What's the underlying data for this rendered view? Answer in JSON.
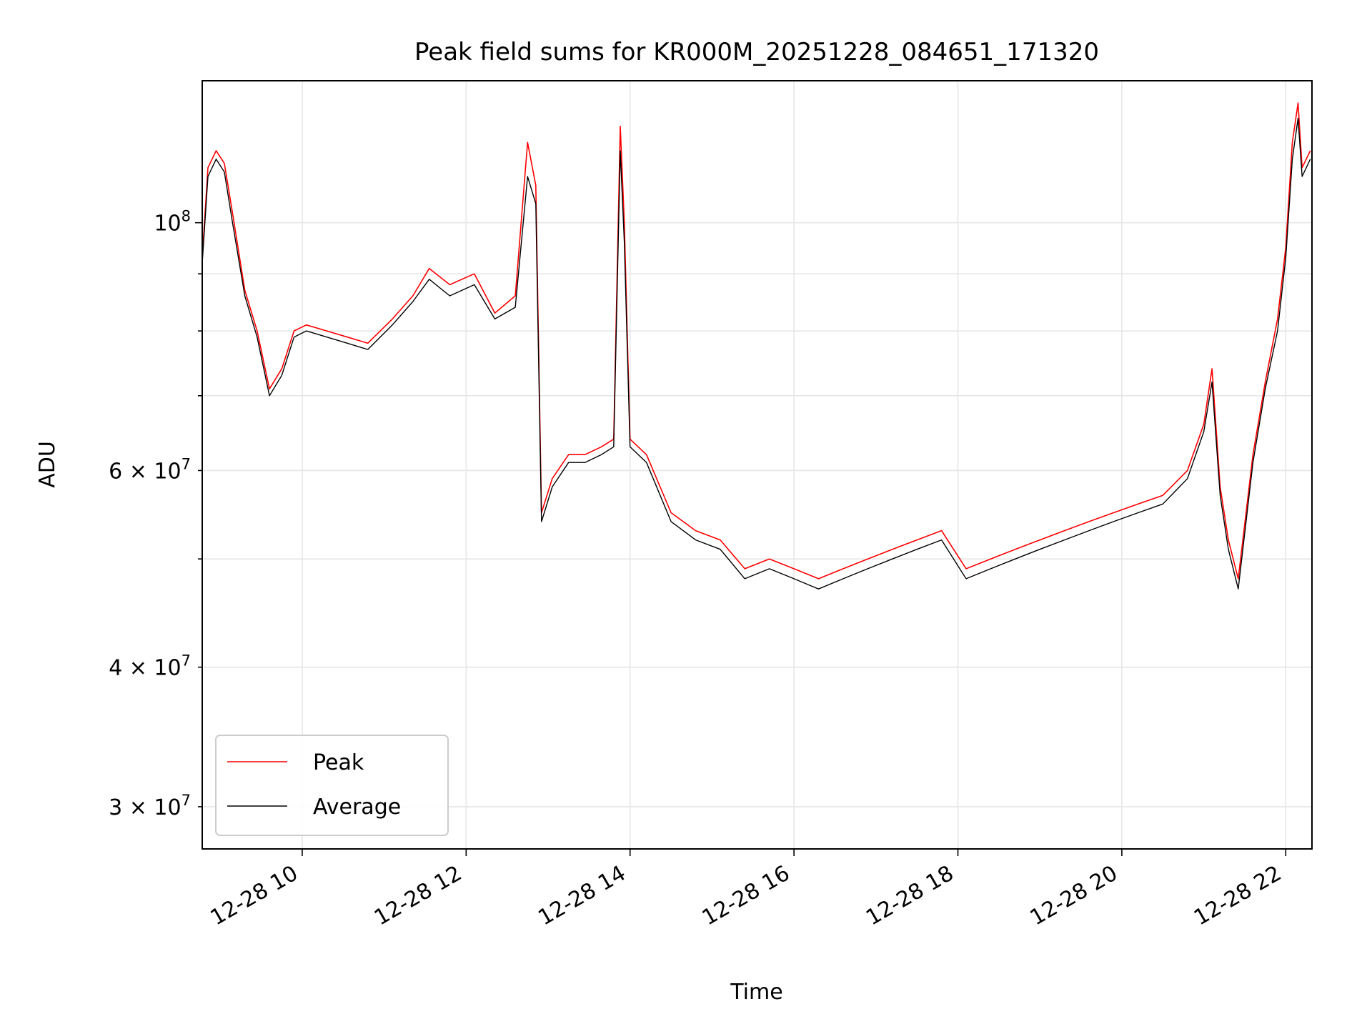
{
  "chart_data": {
    "type": "line",
    "title": "Peak field sums for KR000M_20251228_084651_171320",
    "xlabel": "Time",
    "ylabel": "ADU",
    "x_unit": "hours (2025-12-28)",
    "xlim": [
      8.78,
      22.32
    ],
    "ylim": [
      27500000.0,
      134000000.0
    ],
    "yscale": "log",
    "grid": true,
    "legend_position": "lower-left",
    "x_ticks": [
      {
        "value": 10,
        "label": "12-28 10"
      },
      {
        "value": 12,
        "label": "12-28 12"
      },
      {
        "value": 14,
        "label": "12-28 14"
      },
      {
        "value": 16,
        "label": "12-28 16"
      },
      {
        "value": 18,
        "label": "12-28 18"
      },
      {
        "value": 20,
        "label": "12-28 20"
      },
      {
        "value": 22,
        "label": "12-28 22"
      }
    ],
    "y_ticks_major": [
      {
        "value": 100000000,
        "mantissa": "10",
        "exponent": "8"
      }
    ],
    "y_ticks_minor": [
      {
        "value": 30000000,
        "mantissa": "3 × 10",
        "exponent": "7"
      },
      {
        "value": 40000000,
        "mantissa": "4 × 10",
        "exponent": "7"
      },
      {
        "value": 50000000,
        "mantissa": "",
        "exponent": ""
      },
      {
        "value": 60000000,
        "mantissa": "6 × 10",
        "exponent": "7"
      },
      {
        "value": 70000000,
        "mantissa": "",
        "exponent": ""
      },
      {
        "value": 80000000,
        "mantissa": "",
        "exponent": ""
      },
      {
        "value": 90000000,
        "mantissa": "",
        "exponent": ""
      }
    ],
    "colors": {
      "peak": "#ff0000",
      "average": "#000000",
      "grid": "#e6e6e6",
      "legend_border": "#cccccc"
    },
    "series": [
      {
        "name": "Peak",
        "x": [
          8.78,
          8.85,
          8.95,
          9.05,
          9.15,
          9.3,
          9.45,
          9.6,
          9.75,
          9.9,
          10.05,
          10.3,
          10.55,
          10.8,
          11.1,
          11.35,
          11.55,
          11.8,
          12.1,
          12.35,
          12.6,
          12.75,
          12.85,
          12.92,
          13.05,
          13.25,
          13.45,
          13.65,
          13.8,
          13.88,
          13.93,
          14.0,
          14.2,
          14.5,
          14.8,
          15.1,
          15.4,
          15.7,
          16.0,
          16.3,
          16.6,
          16.9,
          17.2,
          17.5,
          17.8,
          18.1,
          18.4,
          18.7,
          19.0,
          19.3,
          19.6,
          19.9,
          20.2,
          20.5,
          20.8,
          21.0,
          21.1,
          21.2,
          21.3,
          21.42,
          21.6,
          21.75,
          21.9,
          22.0,
          22.08,
          22.15,
          22.2,
          22.3
        ],
        "y": [
          93000000,
          112000000,
          116000000,
          113000000,
          102000000,
          87000000,
          80000000,
          71000000,
          74000000,
          80000000,
          81000000,
          80000000,
          79000000,
          78000000,
          82000000,
          86000000,
          91000000,
          88000000,
          90000000,
          83000000,
          86000000,
          118000000,
          108000000,
          55000000,
          59000000,
          62000000,
          62000000,
          63000000,
          64000000,
          122000000,
          100000000,
          64000000,
          62000000,
          55000000,
          53000000,
          52000000,
          49000000,
          50000000,
          49000000,
          48000000,
          49000000,
          50000000,
          51000000,
          52000000,
          53000000,
          49000000,
          50000000,
          51000000,
          52000000,
          53000000,
          54000000,
          55000000,
          56000000,
          57000000,
          60000000,
          66000000,
          74000000,
          58000000,
          52000000,
          48000000,
          62000000,
          72000000,
          82000000,
          95000000,
          118000000,
          128000000,
          112000000,
          116000000
        ]
      },
      {
        "name": "Average",
        "x": [
          8.78,
          8.85,
          8.95,
          9.05,
          9.15,
          9.3,
          9.45,
          9.6,
          9.75,
          9.9,
          10.05,
          10.3,
          10.55,
          10.8,
          11.1,
          11.35,
          11.55,
          11.8,
          12.1,
          12.35,
          12.6,
          12.75,
          12.85,
          12.92,
          13.05,
          13.25,
          13.45,
          13.65,
          13.8,
          13.88,
          13.93,
          14.0,
          14.2,
          14.5,
          14.8,
          15.1,
          15.4,
          15.7,
          16.0,
          16.3,
          16.6,
          16.9,
          17.2,
          17.5,
          17.8,
          18.1,
          18.4,
          18.7,
          19.0,
          19.3,
          19.6,
          19.9,
          20.2,
          20.5,
          20.8,
          21.0,
          21.1,
          21.2,
          21.3,
          21.42,
          21.6,
          21.75,
          21.9,
          22.0,
          22.08,
          22.15,
          22.2,
          22.3
        ],
        "y": [
          92000000,
          110000000,
          114000000,
          111000000,
          100000000,
          86000000,
          79000000,
          70000000,
          73000000,
          79000000,
          80000000,
          79000000,
          78000000,
          77000000,
          81000000,
          85000000,
          89000000,
          86000000,
          88000000,
          82000000,
          84000000,
          110000000,
          104000000,
          54000000,
          58000000,
          61000000,
          61000000,
          62000000,
          63000000,
          116000000,
          96000000,
          63000000,
          61000000,
          54000000,
          52000000,
          51000000,
          48000000,
          49000000,
          48000000,
          47000000,
          48000000,
          49000000,
          50000000,
          51000000,
          52000000,
          48000000,
          49000000,
          50000000,
          51000000,
          52000000,
          53000000,
          54000000,
          55000000,
          56000000,
          59000000,
          65000000,
          72000000,
          57000000,
          51000000,
          47000000,
          61000000,
          71000000,
          80000000,
          93000000,
          114000000,
          124000000,
          110000000,
          114000000
        ]
      }
    ]
  }
}
